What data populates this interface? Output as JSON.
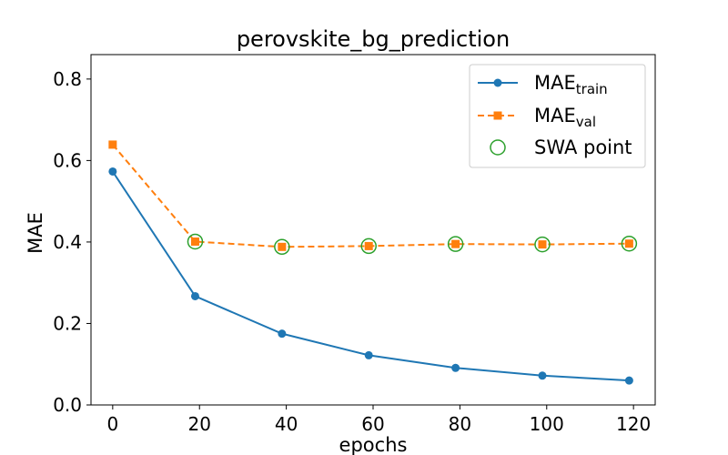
{
  "chart_data": {
    "type": "line",
    "title": "perovskite_bg_prediction",
    "xlabel": "epochs",
    "ylabel": "MAE",
    "xlim": [
      -5,
      125
    ],
    "ylim": [
      0,
      0.86
    ],
    "xticks": [
      0,
      20,
      40,
      60,
      80,
      100,
      120
    ],
    "yticks": [
      0.0,
      0.2,
      0.4,
      0.6,
      0.8
    ],
    "xtick_labels": [
      "0",
      "20",
      "40",
      "60",
      "80",
      "100",
      "120"
    ],
    "ytick_labels": [
      "0.0",
      "0.2",
      "0.4",
      "0.6",
      "0.8"
    ],
    "grid": false,
    "legend_position": "top-right",
    "series": [
      {
        "name_base": "MAE",
        "name_sub": "train",
        "color": "#1f77b4",
        "marker": "circle",
        "line_style": "solid",
        "x": [
          0,
          19,
          39,
          59,
          79,
          99,
          119
        ],
        "values": [
          0.573,
          0.267,
          0.175,
          0.122,
          0.091,
          0.072,
          0.06
        ]
      },
      {
        "name_base": "MAE",
        "name_sub": "val",
        "color": "#ff7f0e",
        "marker": "square",
        "line_style": "dashed",
        "x": [
          0,
          19,
          39,
          59,
          79,
          99,
          119
        ],
        "values": [
          0.639,
          0.401,
          0.388,
          0.39,
          0.395,
          0.394,
          0.396
        ]
      },
      {
        "name": "SWA point",
        "color": "#2ca02c",
        "marker": "open-circle",
        "line_style": "none",
        "x": [
          19,
          39,
          59,
          79,
          99,
          119
        ],
        "values": [
          0.401,
          0.388,
          0.39,
          0.395,
          0.394,
          0.396
        ]
      }
    ]
  }
}
